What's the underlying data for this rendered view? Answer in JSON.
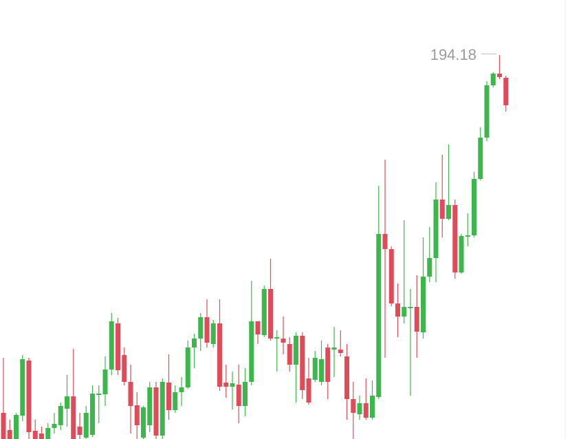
{
  "chart_data": {
    "type": "candlestick",
    "open": [
      142.2,
      139.7,
      138.4,
      141.8,
      149.8,
      139.6,
      139.2,
      138.4,
      140.0,
      140.4,
      142.8,
      144.6,
      140.2,
      138.6,
      139.0,
      144.8,
      144.9,
      148.5,
      155.2,
      150.6,
      146.7,
      143.3,
      138.6,
      140.4,
      145.9,
      138.9,
      146.6,
      142.6,
      145.2,
      145.9,
      151.7,
      153.0,
      156.1,
      152.2,
      155.2,
      146.6,
      146.0,
      146.3,
      143.2,
      146.7,
      155.5,
      153.5,
      160.2,
      153.0,
      153.0,
      152.2,
      149.2,
      153.4,
      147.2,
      147.0,
      146.7,
      151.7,
      151.4,
      151.4,
      150.4,
      144.2,
      142.0,
      143.6,
      141.5,
      144.5,
      168.2,
      166.0,
      158.1,
      156.2,
      157.4,
      157.6,
      153.9,
      162.0,
      164.7,
      173.2,
      170.4,
      172.4,
      162.6,
      167.8,
      168.0,
      176.2,
      182.2,
      189.8,
      191.5,
      190.9
    ],
    "high": [
      150.2,
      141.2,
      142.2,
      150.6,
      150.2,
      141.2,
      140.2,
      140.7,
      142.2,
      143.7,
      147.7,
      151.5,
      142.2,
      143.2,
      146.2,
      146.2,
      150.4,
      156.7,
      156.0,
      151.7,
      149.2,
      145.2,
      143.2,
      146.7,
      146.7,
      147.2,
      150.7,
      146.2,
      147.4,
      152.7,
      153.7,
      156.7,
      158.7,
      155.7,
      158.7,
      149.2,
      148.2,
      149.2,
      148.7,
      161.4,
      155.5,
      160.7,
      164.6,
      154.2,
      156.2,
      153.2,
      153.9,
      153.9,
      150.2,
      151.2,
      152.7,
      152.2,
      154.7,
      154.2,
      152.2,
      146.7,
      144.7,
      147.2,
      146.9,
      175.2,
      179.0,
      166.4,
      161.0,
      170.2,
      160.2,
      162.2,
      167.7,
      169.2,
      175.7,
      179.7,
      181.2,
      173.2,
      168.2,
      171.2,
      177.2,
      183.7,
      190.4,
      191.7,
      194.18,
      191.2
    ],
    "low": [
      138.4,
      138.4,
      138.4,
      141.0,
      138.4,
      138.4,
      138.4,
      138.4,
      139.2,
      139.7,
      140.2,
      138.4,
      138.4,
      138.4,
      138.7,
      140.7,
      143.2,
      147.7,
      147.7,
      146.2,
      139.2,
      138.4,
      138.4,
      139.4,
      138.4,
      138.4,
      141.2,
      142.2,
      143.2,
      145.7,
      148.7,
      151.2,
      151.7,
      151.7,
      145.4,
      144.4,
      142.7,
      140.7,
      141.7,
      146.2,
      152.2,
      153.2,
      152.7,
      148.2,
      150.7,
      148.2,
      143.7,
      144.2,
      143.4,
      146.7,
      146.2,
      144.2,
      147.4,
      150.4,
      141.2,
      138.4,
      141.2,
      141.2,
      141.2,
      144.2,
      150.2,
      157.7,
      153.2,
      155.2,
      144.7,
      150.2,
      153.0,
      161.2,
      161.2,
      167.7,
      170.2,
      161.7,
      162.4,
      166.4,
      167.7,
      176.0,
      181.7,
      189.5,
      190.7,
      186.0
    ],
    "close": [
      138.4,
      138.4,
      141.9,
      150.0,
      139.4,
      138.4,
      138.4,
      140.0,
      140.6,
      143.2,
      144.6,
      138.4,
      139.0,
      142.2,
      145.0,
      145.0,
      148.5,
      155.5,
      148.4,
      146.7,
      143.2,
      140.4,
      143.0,
      145.9,
      138.9,
      146.7,
      142.6,
      145.2,
      145.9,
      151.7,
      153.0,
      156.1,
      152.4,
      155.2,
      146.0,
      146.0,
      146.5,
      143.2,
      146.7,
      155.5,
      153.6,
      160.2,
      153.0,
      153.2,
      152.4,
      149.2,
      153.4,
      145.5,
      143.7,
      150.2,
      150.0,
      146.7,
      151.7,
      150.9,
      144.2,
      142.2,
      143.6,
      141.5,
      144.7,
      168.2,
      166.0,
      158.1,
      156.2,
      157.6,
      157.6,
      154.0,
      162.0,
      164.7,
      173.2,
      170.4,
      172.4,
      162.6,
      167.9,
      168.0,
      176.2,
      182.2,
      189.8,
      191.5,
      191.0,
      186.9
    ],
    "up_color": "#3db64c",
    "down_color": "#e04b5a",
    "ylim": [
      138.4,
      202.2
    ]
  }
}
